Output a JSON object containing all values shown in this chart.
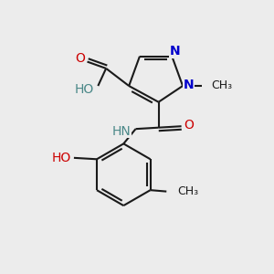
{
  "bg_color": "#ececec",
  "bond_color": "#1a1a1a",
  "N_color": "#0000cc",
  "O_color": "#cc0000",
  "teal_color": "#4a8888",
  "bond_width": 1.5,
  "figsize": [
    3.0,
    3.0
  ],
  "dpi": 100,
  "xlim": [
    0,
    10
  ],
  "ylim": [
    0,
    10
  ]
}
